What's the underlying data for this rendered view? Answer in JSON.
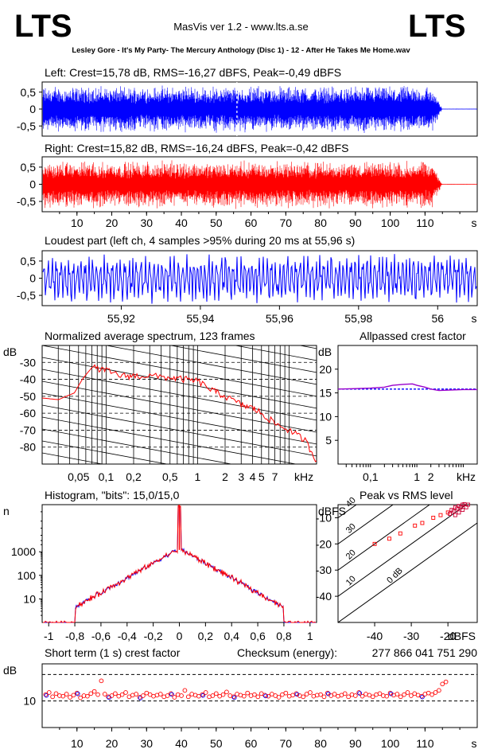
{
  "header": {
    "logo_left": "LTS",
    "logo_right": "LTS",
    "app_title": "MasVis ver 1.2 - www.lts.a.se",
    "track": "Lesley Gore - It's My Party- The Mercury Anthology (Disc 1) - 12 - After He Takes Me Home.wav"
  },
  "colors": {
    "left": "#0000ff",
    "right": "#ff0000",
    "grid": "#000000"
  },
  "chart_data": [
    {
      "type": "line",
      "id": "left-waveform",
      "title": "Left: Crest=15,78 dB, RMS=-16,27 dBFS, Peak=-0,49 dBFS",
      "ylim": [
        -0.8,
        0.8
      ],
      "yticks": [
        "0,5",
        "0",
        "-0,5"
      ],
      "ytick_values": [
        0.5,
        0,
        -0.5
      ],
      "xlim": [
        0,
        125
      ],
      "fade_start": 112,
      "end_time": 115,
      "loudest_marker": 55.96
    },
    {
      "type": "line",
      "id": "right-waveform",
      "title": "Right: Crest=15,82 dB, RMS=-16,24 dBFS, Peak=-0,42 dBFS",
      "ylim": [
        -0.8,
        0.8
      ],
      "yticks": [
        "0,5",
        "0",
        "-0,5"
      ],
      "ytick_values": [
        0.5,
        0,
        -0.5
      ],
      "xlim": [
        0,
        125
      ],
      "xticks": [
        "10",
        "20",
        "30",
        "40",
        "50",
        "60",
        "70",
        "80",
        "90",
        "100",
        "110"
      ],
      "xtick_values": [
        10,
        20,
        30,
        40,
        50,
        60,
        70,
        80,
        90,
        100,
        110
      ],
      "xunit": "s",
      "fade_start": 112,
      "end_time": 115
    },
    {
      "type": "line",
      "id": "loudest-part",
      "title": "Loudest part (left  ch, 4 samples >95% during 20 ms at 55,96 s)",
      "xlim": [
        55.9,
        56.01
      ],
      "ylim": [
        -0.8,
        0.8
      ],
      "yticks": [
        "0,5",
        "0",
        "-0,5"
      ],
      "ytick_values": [
        0.5,
        0,
        -0.5
      ],
      "xticks": [
        "55,92",
        "55,94",
        "55,96",
        "55,98",
        "56"
      ],
      "xtick_values": [
        55.92,
        55.94,
        55.96,
        55.98,
        56.0
      ],
      "xunit": "s"
    },
    {
      "type": "line",
      "id": "spectrum",
      "title": "Normalized average spectrum, 123 frames",
      "ylabel": "dB",
      "ylim": [
        -90,
        -20
      ],
      "yticks": [
        "-30",
        "-40",
        "-50",
        "-60",
        "-70",
        "-80"
      ],
      "ytick_values": [
        -30,
        -40,
        -50,
        -60,
        -70,
        -80
      ],
      "xlim_khz": [
        0.02,
        20
      ],
      "xticks": [
        "0,05",
        "0,1",
        "0,2",
        "0,5",
        "1",
        "2",
        "3",
        "4",
        "5",
        "7"
      ],
      "xtick_values_khz": [
        0.05,
        0.1,
        0.2,
        0.5,
        1,
        2,
        3,
        4,
        5,
        7
      ],
      "xunit": "kHz",
      "x_khz": [
        0.02,
        0.03,
        0.045,
        0.055,
        0.07,
        0.1,
        0.15,
        0.2,
        0.3,
        0.5,
        0.7,
        1,
        1.5,
        2,
        3,
        4,
        5,
        7,
        10,
        15,
        20
      ],
      "y_db": [
        -51,
        -52,
        -48,
        -40,
        -33,
        -35,
        -38,
        -38,
        -38,
        -39,
        -40,
        -41,
        -47,
        -50,
        -55,
        -57,
        -60,
        -66,
        -70,
        -76,
        -88
      ]
    },
    {
      "type": "line",
      "id": "allpassed-crest",
      "title": "Allpassed crest factor",
      "ylabel": "dB",
      "ylim": [
        0,
        25
      ],
      "yticks": [
        "20",
        "15",
        "10",
        "5"
      ],
      "ytick_values": [
        20,
        15,
        10,
        5
      ],
      "xlim_khz": [
        0.02,
        20
      ],
      "xticks": [
        "0,1",
        "1",
        "2",
        "kHz"
      ],
      "xtick_values_khz": [
        0.1,
        1,
        2
      ],
      "x_khz": [
        0.02,
        0.05,
        0.1,
        0.2,
        0.3,
        0.5,
        0.8,
        1,
        1.5,
        2,
        3,
        5,
        10,
        20
      ],
      "y_db": [
        15.8,
        15.9,
        16.0,
        16.2,
        16.6,
        16.8,
        16.9,
        16.6,
        16.2,
        15.8,
        15.5,
        15.6,
        15.7,
        15.7
      ],
      "reference_db": 15.8
    },
    {
      "type": "bar",
      "id": "histogram",
      "title": "Histogram, \"bits\": 15,0/15,0",
      "ylabel": "n",
      "yscale": "log",
      "ylim": [
        1,
        100000
      ],
      "yticks": [
        "1000",
        "100",
        "10"
      ],
      "ytick_values": [
        1000,
        100,
        10
      ],
      "xlim": [
        -1.05,
        1.05
      ],
      "xticks": [
        "-1",
        "-0,8",
        "-0,6",
        "-0,4",
        "-0,2",
        "0",
        "0,2",
        "0,4",
        "0,6",
        "0,8",
        "1"
      ],
      "xtick_values": [
        -1,
        -0.8,
        -0.6,
        -0.4,
        -0.2,
        0,
        0.2,
        0.4,
        0.6,
        0.8,
        1
      ]
    },
    {
      "type": "scatter",
      "id": "peak-vs-rms",
      "title": "Peak vs RMS level",
      "ylabel": "dBFS",
      "xlabel": "dBFS",
      "xlim": [
        -50,
        -12
      ],
      "ylim": [
        -50,
        -5
      ],
      "yticks": [
        "-10",
        "-20",
        "-30",
        "-40"
      ],
      "ytick_values": [
        -10,
        -20,
        -30,
        -40
      ],
      "xticks": [
        "-40",
        "-30",
        "-20"
      ],
      "xtick_values": [
        -40,
        -30,
        -20
      ],
      "crest_lines": [
        "40",
        "30",
        "20",
        "10",
        "0 dB"
      ],
      "crest_line_values": [
        40,
        30,
        20,
        10,
        0
      ],
      "points": [
        [
          -40,
          -20
        ],
        [
          -33,
          -16
        ],
        [
          -27,
          -12
        ],
        [
          -24,
          -10
        ],
        [
          -22,
          -9
        ],
        [
          -20,
          -8
        ],
        [
          -19,
          -7
        ],
        [
          -18,
          -6
        ],
        [
          -17,
          -5.5
        ],
        [
          -16,
          -5
        ],
        [
          -15.5,
          -4.8
        ],
        [
          -18.5,
          -7.5
        ],
        [
          -17.5,
          -6.5
        ],
        [
          -16.5,
          -6
        ],
        [
          -19.5,
          -8.5
        ],
        [
          -14.5,
          -5
        ],
        [
          -15,
          -6
        ],
        [
          -16,
          -7
        ],
        [
          -17,
          -8
        ],
        [
          -18,
          -9
        ],
        [
          -36,
          -18
        ],
        [
          -29,
          -13
        ]
      ]
    },
    {
      "type": "scatter",
      "id": "short-term-crest",
      "title": "Short term (1 s) crest factor",
      "checksum_label": "Checksum (energy):",
      "checksum_value": "277 866 041 751 290",
      "ylabel": "dB",
      "ylim": [
        5,
        17
      ],
      "yticks": [
        "10"
      ],
      "ytick_values": [
        10
      ],
      "dashed_levels": [
        10,
        15
      ],
      "xlim": [
        0,
        125
      ],
      "xticks": [
        "10",
        "20",
        "30",
        "40",
        "50",
        "60",
        "70",
        "80",
        "90",
        "100",
        "110"
      ],
      "xtick_values": [
        10,
        20,
        30,
        40,
        50,
        60,
        70,
        80,
        90,
        100,
        110
      ],
      "xunit": "s",
      "values": [
        11.2,
        11.6,
        10.8,
        11.4,
        11.0,
        10.9,
        11.3,
        10.7,
        11.1,
        11.5,
        10.6,
        11.0,
        10.9,
        11.4,
        11.8,
        11.2,
        13.8,
        11.3,
        10.8,
        11.0,
        11.4,
        10.9,
        11.2,
        11.6,
        10.8,
        11.1,
        11.3,
        10.7,
        11.0,
        11.5,
        11.2,
        10.9,
        11.1,
        11.3,
        10.8,
        11.0,
        11.4,
        10.7,
        11.2,
        11.0,
        12.0,
        10.8,
        11.3,
        11.1,
        10.9,
        11.2,
        11.6,
        10.8,
        11.0,
        11.4,
        10.9,
        11.2,
        11.7,
        11.0,
        10.8,
        11.3,
        11.1,
        10.9,
        11.5,
        11.0,
        11.2,
        10.8,
        11.4,
        11.1,
        10.9,
        11.3,
        11.0,
        10.7,
        11.2,
        11.5,
        10.9,
        11.1,
        11.4,
        11.0,
        10.8,
        11.3,
        11.6,
        10.9,
        11.1,
        11.2,
        10.8,
        11.5,
        11.0,
        11.3,
        10.9,
        11.1,
        11.4,
        10.8,
        11.2,
        11.0,
        11.6,
        10.9,
        11.3,
        11.1,
        10.8,
        11.2,
        11.4,
        11.0,
        10.9,
        11.5,
        11.1,
        11.3,
        10.8,
        11.2,
        11.6,
        11.0,
        11.4,
        11.1,
        10.9,
        11.3,
        11.5,
        11.2,
        11.6,
        12.0,
        13.2,
        13.6
      ]
    }
  ]
}
